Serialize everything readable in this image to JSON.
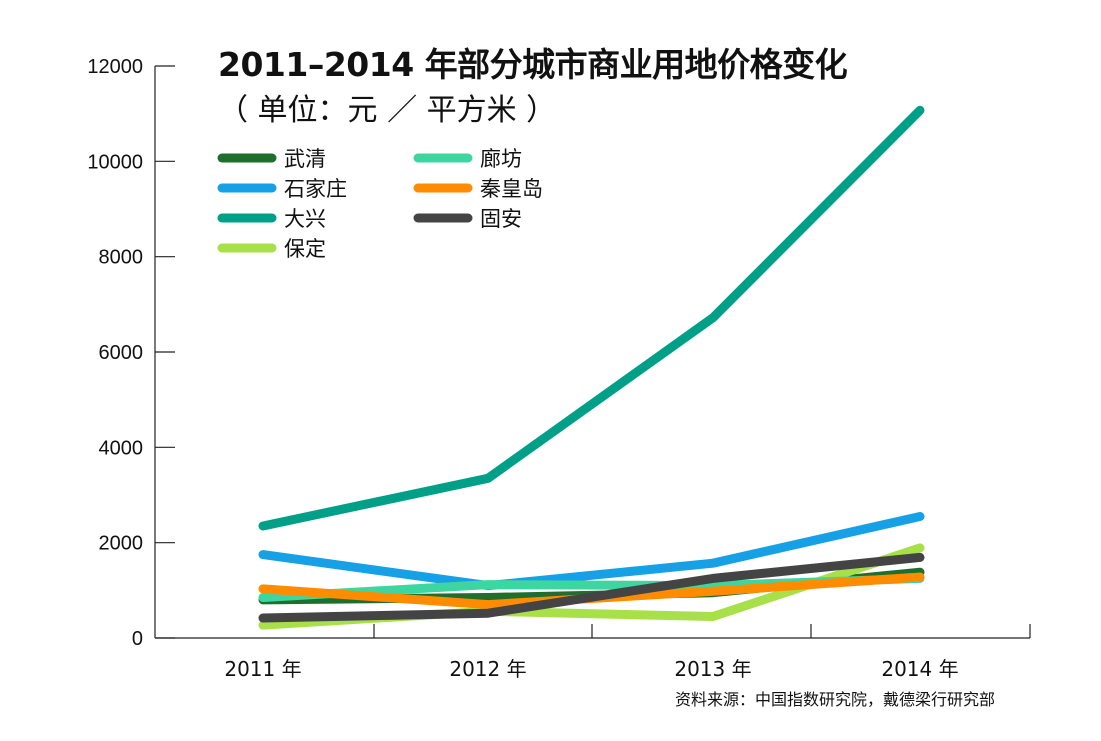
{
  "chart_data": {
    "type": "line",
    "title": "2011–2014 年部分城市商业用地价格变化",
    "subtitle": "（ 单位：元 ／ 平方米 ）",
    "source": "资料来源：中国指数研究院，戴德梁行研究部",
    "x": [
      "2011 年",
      "2012 年",
      "2013 年",
      "2014 年"
    ],
    "yticks": [
      "0",
      "2000",
      "4000",
      "6000",
      "8000",
      "10000",
      "12000"
    ],
    "ylim": [
      0,
      12000
    ],
    "grid": false,
    "legend_position": "top-left",
    "series": [
      {
        "name": "武清",
        "color": "#1e6e2e",
        "values": [
          800,
          850,
          950,
          1380
        ]
      },
      {
        "name": "石家庄",
        "color": "#16a0e6",
        "values": [
          1750,
          1100,
          1570,
          2550
        ]
      },
      {
        "name": "大兴",
        "color": "#00a088",
        "values": [
          2350,
          3350,
          6720,
          11070
        ]
      },
      {
        "name": "保定",
        "color": "#a8e04a",
        "values": [
          270,
          560,
          450,
          1890
        ]
      },
      {
        "name": "廊坊",
        "color": "#3ed6a0",
        "values": [
          850,
          1120,
          1100,
          1250
        ]
      },
      {
        "name": "秦皇岛",
        "color": "#ff8c00",
        "values": [
          1030,
          700,
          980,
          1280
        ]
      },
      {
        "name": "固安",
        "color": "#444444",
        "values": [
          420,
          520,
          1250,
          1690
        ]
      }
    ]
  }
}
